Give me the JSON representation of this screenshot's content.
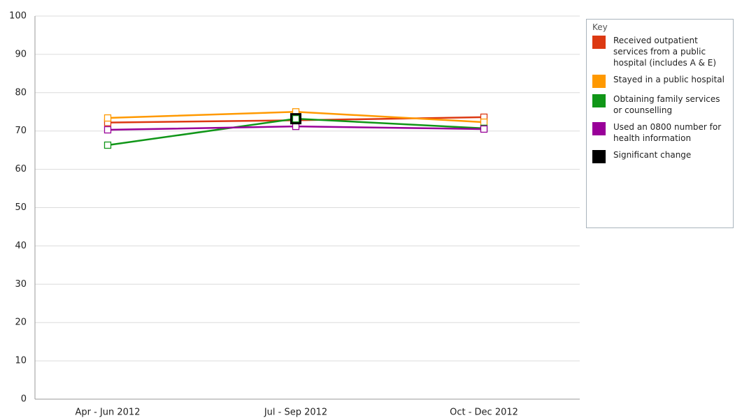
{
  "chart_data": {
    "type": "line",
    "categories": [
      "Apr - Jun 2012",
      "Jul - Sep 2012",
      "Oct - Dec 2012"
    ],
    "series": [
      {
        "name": "Received outpatient services from a public hospital (includes A & E)",
        "color": "#dc3912",
        "values": [
          72.2,
          72.8,
          73.6
        ]
      },
      {
        "name": "Stayed in a public hospital",
        "color": "#ff9900",
        "values": [
          73.4,
          75.0,
          72.3
        ]
      },
      {
        "name": "Obtaining family services or counselling",
        "color": "#109618",
        "values": [
          66.3,
          73.2,
          70.7
        ]
      },
      {
        "name": "Used an 0800 number for health information",
        "color": "#990099",
        "values": [
          70.3,
          71.2,
          70.5
        ]
      }
    ],
    "significant_change": {
      "name": "Significant change",
      "color": "#000000",
      "points": [
        {
          "series": 2,
          "index": 1
        }
      ]
    },
    "legend_title": "Key",
    "legend": "right",
    "ylim": [
      0,
      100
    ],
    "yticks": [
      0,
      10,
      20,
      30,
      40,
      50,
      60,
      70,
      80,
      90,
      100
    ],
    "grid": true
  }
}
